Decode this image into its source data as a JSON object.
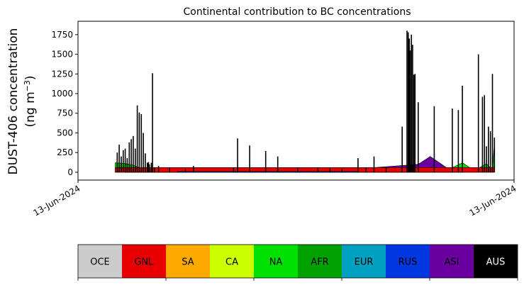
{
  "chart_data": {
    "type": "area",
    "title": "Continental contribution to BC concentrations",
    "ylabel_line1": "DUST-406 concentration",
    "ylabel_line2": "(ng m",
    "ylabel_unit_exp": "−3",
    "ylabel_close": ")",
    "ylim": [
      -100,
      1920
    ],
    "yticks": [
      0,
      250,
      500,
      750,
      1000,
      1250,
      1500,
      1750
    ],
    "ytick_labels": [
      "0",
      "250",
      "500",
      "750",
      "1000",
      "1250",
      "1500",
      "1750"
    ],
    "xticks": [
      {
        "label": "13-Jun-2024",
        "frac": 0.0
      },
      {
        "label": "13-Jun-2024",
        "frac": 1.0
      }
    ],
    "xrange": [
      0,
      1
    ],
    "baseline_series": [
      {
        "name": "NA",
        "color": "#00e000",
        "x": [
          0.045,
          0.07,
          0.09,
          0.12,
          0.3,
          0.36,
          0.5,
          0.76,
          0.78,
          0.82,
          0.84,
          0.87,
          0.91,
          0.94,
          0.97,
          0.985,
          0.99
        ],
        "values": [
          120,
          110,
          90,
          30,
          10,
          12,
          8,
          8,
          100,
          40,
          120,
          20,
          120,
          20,
          110,
          30,
          380
        ]
      },
      {
        "name": "ASI",
        "color": "#6a00a0",
        "x": [
          0.07,
          0.15,
          0.35,
          0.37,
          0.42,
          0.6,
          0.8,
          0.83,
          0.87,
          0.91
        ],
        "values": [
          20,
          30,
          40,
          30,
          15,
          25,
          100,
          200,
          60,
          40
        ]
      },
      {
        "name": "GNL",
        "color": "#e80000",
        "x": [
          0.045,
          0.055,
          0.99
        ],
        "values": [
          60,
          60,
          60
        ]
      },
      {
        "name": "RUS",
        "color": "#0037e0",
        "x": [
          0.2,
          0.5,
          0.65
        ],
        "values": [
          10,
          10,
          10
        ]
      }
    ],
    "total_spikes": {
      "x": [
        0.05,
        0.055,
        0.06,
        0.065,
        0.07,
        0.075,
        0.08,
        0.085,
        0.09,
        0.095,
        0.1,
        0.105,
        0.11,
        0.115,
        0.12,
        0.125,
        0.128,
        0.13,
        0.135,
        0.138,
        0.143,
        0.153,
        0.18,
        0.22,
        0.24,
        0.34,
        0.35,
        0.38,
        0.42,
        0.45,
        0.5,
        0.55,
        0.58,
        0.61,
        0.65,
        0.67,
        0.69,
        0.72,
        0.76,
        0.772,
        0.775,
        0.778,
        0.78,
        0.783,
        0.786,
        0.789,
        0.792,
        0.8,
        0.84,
        0.885,
        0.9,
        0.91,
        0.95,
        0.96,
        0.965,
        0.97,
        0.975,
        0.98,
        0.985,
        0.99
      ],
      "values": [
        250,
        350,
        200,
        280,
        300,
        180,
        380,
        420,
        460,
        300,
        850,
        760,
        740,
        500,
        240,
        120,
        130,
        100,
        120,
        1260,
        60,
        80,
        60,
        40,
        80,
        60,
        430,
        340,
        270,
        200,
        60,
        60,
        50,
        40,
        180,
        60,
        200,
        60,
        580,
        1800,
        1780,
        1700,
        1550,
        1750,
        1620,
        1240,
        1250,
        890,
        840,
        810,
        790,
        1100,
        1500,
        960,
        980,
        330,
        580,
        520,
        1250,
        440
      ]
    },
    "legend": [
      {
        "label": "OCE",
        "color": "#cccccc",
        "text_color": "#000000"
      },
      {
        "label": "GNL",
        "color": "#e80000",
        "text_color": "#000000"
      },
      {
        "label": "SA",
        "color": "#ffaa00",
        "text_color": "#000000"
      },
      {
        "label": "CA",
        "color": "#ccff00",
        "text_color": "#000000"
      },
      {
        "label": "NA",
        "color": "#00e000",
        "text_color": "#000000"
      },
      {
        "label": "AFR",
        "color": "#00a000",
        "text_color": "#000000"
      },
      {
        "label": "EUR",
        "color": "#00a0c0",
        "text_color": "#000000"
      },
      {
        "label": "RUS",
        "color": "#0037e0",
        "text_color": "#000000"
      },
      {
        "label": "ASI",
        "color": "#6a00a0",
        "text_color": "#000000"
      },
      {
        "label": "AUS",
        "color": "#000000",
        "text_color": "#ffffff"
      }
    ]
  }
}
